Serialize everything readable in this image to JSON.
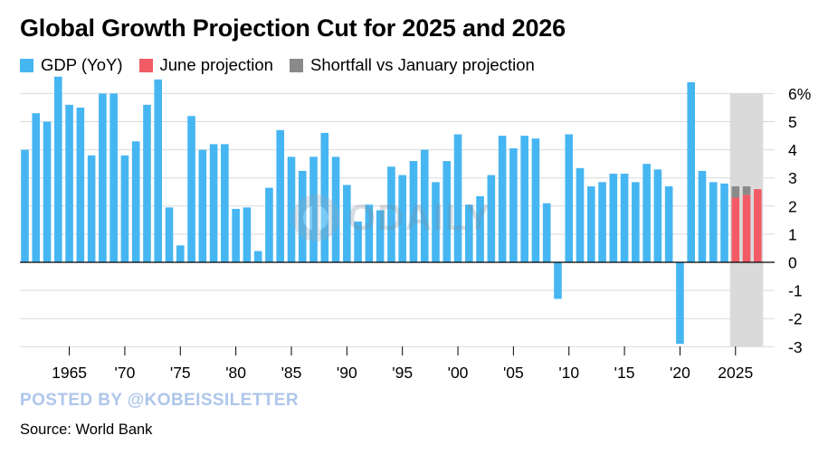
{
  "title": "Global Growth Projection Cut for 2025 and 2026",
  "legend": {
    "gdp": "GDP (YoY)",
    "june": "June projection",
    "shortfall": "Shortfall vs January projection"
  },
  "colors": {
    "gdp": "#46b6f2",
    "june": "#f25a66",
    "shortfall": "#8a8a8a",
    "shade": "#dadada",
    "grid": "#d9d9d9",
    "watermark": "#aec6ea"
  },
  "watermark": "POSTED BY @KOBEISSILETTER",
  "logo_watermark": "ODAILY",
  "source": "Source: World Bank",
  "chart_data": {
    "type": "bar",
    "title": "Global Growth Projection Cut for 2025 and 2026",
    "xlabel": "",
    "ylabel": "",
    "ylim": [
      -3,
      6
    ],
    "y_ticks": [
      "6%",
      "5",
      "4",
      "3",
      "2",
      "1",
      "0",
      "-1",
      "-2",
      "-3"
    ],
    "y_tick_values": [
      6,
      5,
      4,
      3,
      2,
      1,
      0,
      -1,
      -2,
      -3
    ],
    "x_tick_labels": [
      "1965",
      "'70",
      "'75",
      "'80",
      "'85",
      "'90",
      "'95",
      "'00",
      "'05",
      "'10",
      "'15",
      "'20",
      "2025"
    ],
    "x_tick_years": [
      1965,
      1970,
      1975,
      1980,
      1985,
      1990,
      1995,
      2000,
      2005,
      2010,
      2015,
      2020,
      2025
    ],
    "shaded_years": [
      2025,
      2027
    ],
    "gdp_series": {
      "name": "GDP (YoY)",
      "years": [
        1961,
        1962,
        1963,
        1964,
        1965,
        1966,
        1967,
        1968,
        1969,
        1970,
        1971,
        1972,
        1973,
        1974,
        1975,
        1976,
        1977,
        1978,
        1979,
        1980,
        1981,
        1982,
        1983,
        1984,
        1985,
        1986,
        1987,
        1988,
        1989,
        1990,
        1991,
        1992,
        1993,
        1994,
        1995,
        1996,
        1997,
        1998,
        1999,
        2000,
        2001,
        2002,
        2003,
        2004,
        2005,
        2006,
        2007,
        2008,
        2009,
        2010,
        2011,
        2012,
        2013,
        2014,
        2015,
        2016,
        2017,
        2018,
        2019,
        2020,
        2021,
        2022,
        2023,
        2024
      ],
      "values": [
        4.0,
        5.3,
        5.0,
        6.6,
        5.6,
        5.5,
        3.8,
        6.0,
        6.0,
        3.8,
        4.3,
        5.6,
        6.5,
        1.95,
        0.6,
        5.2,
        4.0,
        4.2,
        4.2,
        1.9,
        1.95,
        0.4,
        2.65,
        4.7,
        3.75,
        3.25,
        3.75,
        4.6,
        3.75,
        2.75,
        1.45,
        2.05,
        1.85,
        3.4,
        3.1,
        3.6,
        4.0,
        2.85,
        3.6,
        4.55,
        2.05,
        2.35,
        3.1,
        4.5,
        4.05,
        4.5,
        4.4,
        2.1,
        -1.3,
        4.55,
        3.35,
        2.7,
        2.85,
        3.15,
        3.15,
        2.85,
        3.5,
        3.3,
        2.7,
        -2.9,
        6.4,
        3.25,
        2.85,
        2.8
      ]
    },
    "projection_series": {
      "years": [
        2025,
        2026,
        2027
      ],
      "june_projection": [
        2.3,
        2.4,
        2.6
      ],
      "shortfall_vs_january": [
        0.4,
        0.3,
        0.0
      ]
    }
  }
}
